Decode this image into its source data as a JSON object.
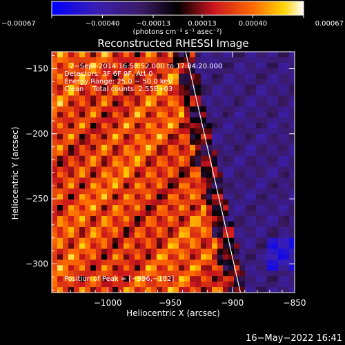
{
  "chart_data": {
    "type": "heatmap",
    "title": "Reconstructed RHESSI Image",
    "xlabel": "Heliocentric X (arcsec)",
    "ylabel": "Heliocentric Y (arcsec)",
    "xlim": [
      -1045,
      -850
    ],
    "ylim": [
      -322,
      -137
    ],
    "x_ticks": [
      {
        "value": -1000,
        "label": "−1000"
      },
      {
        "value": -950,
        "label": "−950"
      },
      {
        "value": -900,
        "label": "−900"
      },
      {
        "value": -850,
        "label": "−850"
      }
    ],
    "y_ticks": [
      {
        "value": -150,
        "label": "−150"
      },
      {
        "value": -200,
        "label": "−200"
      },
      {
        "value": -250,
        "label": "−250"
      },
      {
        "value": -300,
        "label": "−300"
      }
    ],
    "colorbar": {
      "range": [
        -0.00067,
        0.00067
      ],
      "tick_values": [
        -0.00067,
        -0.0004,
        -0.00013,
        0.00013,
        0.0004,
        0.00067
      ],
      "tick_labels": [
        "−0.00067",
        "−0.00040",
        "−0.00013",
        "0.00013",
        "0.00040",
        "0.00067"
      ],
      "label": "(photons cm⁻² s⁻¹ asec⁻²)",
      "colors": [
        "#0000ff",
        "#3b1fb0",
        "#3a1a62",
        "#000000",
        "#c8141e",
        "#ff6a00",
        "#ffd400",
        "#ffffff"
      ]
    },
    "annotations": [
      "2−Sep−2014 16:58:52.000 to 17:04:20.000",
      "Detectors: 3F 6F 9F, Att 0",
      "Energy Range: 25.0 − 50.0 keV",
      "Clean    Total counts: 2.55E+03"
    ],
    "peak_label": "Position of Peak = [−996,−182]",
    "limb_line": [
      {
        "x": -937.5,
        "y": -137
      },
      {
        "x": -893.5,
        "y": -322
      }
    ]
  },
  "footer": {
    "timestamp": "16−May−2022 16:41"
  }
}
